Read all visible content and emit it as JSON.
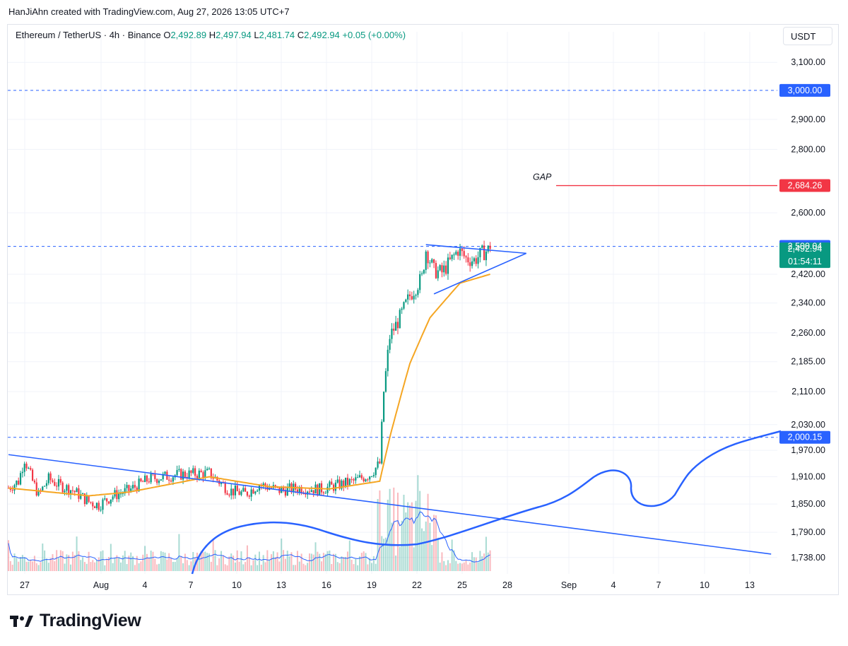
{
  "header": {
    "text": "HanJiAhn created with TradingView.com, Aug 27, 2026 13:05 UTC+7"
  },
  "legend": {
    "symbol": "Ethereum / TetherUS · 4h · Binance",
    "o_label": "O",
    "o_value": "2,492.89",
    "h_label": "H",
    "h_value": "2,497.94",
    "l_label": "L",
    "l_value": "2,481.74",
    "c_label": "C",
    "c_value": "2,492.94",
    "change": "+0.05 (+0.00%)"
  },
  "currency": "USDT",
  "footer": {
    "brand": "TradingView"
  },
  "colors": {
    "up": "#089981",
    "down": "#f23645",
    "ma": "#f5a623",
    "drawing": "#2962ff",
    "trend": "#2962ff",
    "gap": "#f23645",
    "grid": "#f0f3fa"
  },
  "chart_data": {
    "type": "candlestick",
    "title": "Ethereum / TetherUS · 4h · Binance",
    "y_axis": {
      "scale": "log",
      "range": [
        1705,
        3160
      ],
      "ticks": [
        "3,100.00",
        "2,900.00",
        "2,800.00",
        "2,600.00",
        "2,420.00",
        "2,340.00",
        "2,260.00",
        "2,185.00",
        "2,110.00",
        "2,030.00",
        "1,970.00",
        "1,910.00",
        "1,850.00",
        "1,790.00",
        "1,738.00"
      ]
    },
    "x_axis": {
      "ticks": [
        "27",
        "Aug",
        "4",
        "7",
        "10",
        "13",
        "16",
        "19",
        "22",
        "25",
        "28",
        "Sep",
        "4",
        "7",
        "10",
        "13"
      ]
    },
    "price_tags": [
      {
        "label": "3,000.00",
        "color": "#2962ff",
        "value": 3000.0
      },
      {
        "label": "2,684.26",
        "color": "#f23645",
        "value": 2684.26
      },
      {
        "label": "2,500.04",
        "color": "#2962ff",
        "value": 2500.04
      },
      {
        "label": "2,492.94",
        "sub": "01:54:11",
        "color": "#089981",
        "value": 2492.94
      },
      {
        "label": "2,000.15",
        "color": "#2962ff",
        "value": 2000.15
      }
    ],
    "horizontal_levels": [
      {
        "value": 3000.0,
        "style": "dashed",
        "color": "#2962ff"
      },
      {
        "value": 2500.04,
        "style": "dashed",
        "color": "#2962ff"
      },
      {
        "value": 2000.15,
        "style": "dashed",
        "color": "#2962ff"
      }
    ],
    "annotations": [
      {
        "text": "GAP",
        "color": "#2962ff",
        "level": 2684.26
      }
    ],
    "price_waypoints": [
      [
        0,
        1885
      ],
      [
        5,
        1900
      ],
      [
        8,
        1950
      ],
      [
        12,
        1900
      ],
      [
        15,
        1870
      ],
      [
        20,
        1905
      ],
      [
        25,
        1892
      ],
      [
        32,
        1880
      ],
      [
        40,
        1855
      ],
      [
        45,
        1848
      ],
      [
        52,
        1868
      ],
      [
        60,
        1880
      ],
      [
        70,
        1905
      ],
      [
        85,
        1915
      ],
      [
        100,
        1918
      ],
      [
        110,
        1880
      ],
      [
        118,
        1872
      ],
      [
        125,
        1893
      ],
      [
        135,
        1880
      ],
      [
        145,
        1885
      ],
      [
        155,
        1882
      ],
      [
        163,
        1890
      ],
      [
        172,
        1900
      ],
      [
        180,
        1915
      ],
      [
        185,
        1940
      ],
      [
        187,
        2110
      ],
      [
        190,
        2250
      ],
      [
        195,
        2300
      ],
      [
        200,
        2360
      ],
      [
        206,
        2410
      ],
      [
        208,
        2490
      ],
      [
        212,
        2430
      ],
      [
        216,
        2425
      ],
      [
        220,
        2455
      ],
      [
        224,
        2490
      ],
      [
        228,
        2465
      ],
      [
        232,
        2460
      ],
      [
        236,
        2480
      ],
      [
        240,
        2493
      ]
    ],
    "moving_average": {
      "color": "#f5a623",
      "values": [
        [
          0,
          1885
        ],
        [
          40,
          1868
        ],
        [
          60,
          1876
        ],
        [
          100,
          1910
        ],
        [
          130,
          1888
        ],
        [
          160,
          1883
        ],
        [
          185,
          1900
        ],
        [
          190,
          2000
        ],
        [
          200,
          2180
        ],
        [
          210,
          2300
        ],
        [
          225,
          2395
        ],
        [
          240,
          2420
        ]
      ]
    },
    "volume_profile_note": "relative volume bars with volume moving average",
    "drawings": [
      {
        "type": "triangle",
        "upper": [
          [
            208,
            2505
          ],
          [
            258,
            2480
          ]
        ],
        "lower": [
          [
            212,
            2365
          ],
          [
            258,
            2480
          ]
        ]
      },
      {
        "type": "trendline",
        "from": [
          0,
          1960
        ],
        "to": [
          380,
          1745
        ]
      }
    ]
  }
}
